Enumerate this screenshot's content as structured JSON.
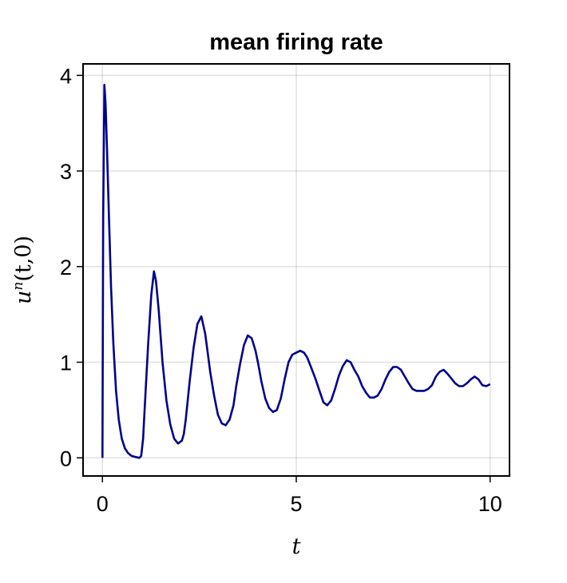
{
  "chart_data": {
    "type": "line",
    "title": "mean firing rate",
    "xlabel": "t",
    "ylabel": "u^n(t,0)",
    "ylabel_parts": {
      "base": "u",
      "sup": "n",
      "args": "(t,0)"
    },
    "xlim": [
      -0.5,
      10.5
    ],
    "ylim": [
      -0.19,
      4.12
    ],
    "xticks": [
      0,
      5,
      10
    ],
    "yticks": [
      0,
      1,
      2,
      3,
      4
    ],
    "grid": true,
    "series": [
      {
        "color": "#00008b",
        "x": [
          0,
          0.0,
          0.02,
          0.05,
          0.08,
          0.12,
          0.17,
          0.22,
          0.28,
          0.35,
          0.42,
          0.5,
          0.58,
          0.66,
          0.75,
          0.85,
          0.95,
          1.0,
          1.05,
          1.1,
          1.18,
          1.26,
          1.33,
          1.38,
          1.45,
          1.55,
          1.65,
          1.75,
          1.85,
          1.95,
          2.05,
          2.1,
          2.15,
          2.25,
          2.35,
          2.45,
          2.55,
          2.65,
          2.7,
          2.78,
          2.88,
          2.98,
          3.08,
          3.18,
          3.28,
          3.38,
          3.45,
          3.55,
          3.65,
          3.75,
          3.85,
          3.95,
          4.02,
          4.1,
          4.2,
          4.3,
          4.4,
          4.5,
          4.6,
          4.7,
          4.8,
          4.9,
          5.0,
          5.1,
          5.2,
          5.28,
          5.38,
          5.5,
          5.6,
          5.7,
          5.8,
          5.9,
          6.0,
          6.1,
          6.2,
          6.3,
          6.4,
          6.5,
          6.6,
          6.7,
          6.8,
          6.9,
          7.0,
          7.1,
          7.2,
          7.3,
          7.4,
          7.5,
          7.6,
          7.7,
          7.8,
          7.9,
          8.0,
          8.1,
          8.2,
          8.3,
          8.4,
          8.5,
          8.6,
          8.7,
          8.8,
          8.9,
          9.0,
          9.1,
          9.2,
          9.3,
          9.4,
          9.5,
          9.6,
          9.7,
          9.8,
          9.9,
          10.0
        ],
        "y": [
          0,
          0.05,
          2.5,
          3.9,
          3.7,
          3.2,
          2.5,
          1.8,
          1.2,
          0.7,
          0.4,
          0.2,
          0.1,
          0.05,
          0.02,
          0.01,
          0.0,
          0.02,
          0.2,
          0.6,
          1.2,
          1.7,
          1.95,
          1.85,
          1.55,
          1.0,
          0.6,
          0.35,
          0.2,
          0.15,
          0.18,
          0.25,
          0.4,
          0.8,
          1.15,
          1.4,
          1.48,
          1.3,
          1.15,
          0.9,
          0.65,
          0.45,
          0.36,
          0.34,
          0.4,
          0.55,
          0.75,
          0.98,
          1.18,
          1.28,
          1.25,
          1.12,
          0.98,
          0.8,
          0.62,
          0.52,
          0.48,
          0.5,
          0.62,
          0.82,
          1.0,
          1.08,
          1.1,
          1.12,
          1.1,
          1.05,
          0.95,
          0.82,
          0.7,
          0.58,
          0.55,
          0.6,
          0.72,
          0.86,
          0.96,
          1.02,
          1.0,
          0.92,
          0.85,
          0.75,
          0.68,
          0.63,
          0.63,
          0.65,
          0.72,
          0.82,
          0.9,
          0.95,
          0.95,
          0.92,
          0.85,
          0.78,
          0.72,
          0.7,
          0.7,
          0.7,
          0.72,
          0.76,
          0.85,
          0.9,
          0.92,
          0.88,
          0.83,
          0.78,
          0.75,
          0.75,
          0.78,
          0.82,
          0.85,
          0.82,
          0.76,
          0.75,
          0.77
        ]
      }
    ]
  }
}
